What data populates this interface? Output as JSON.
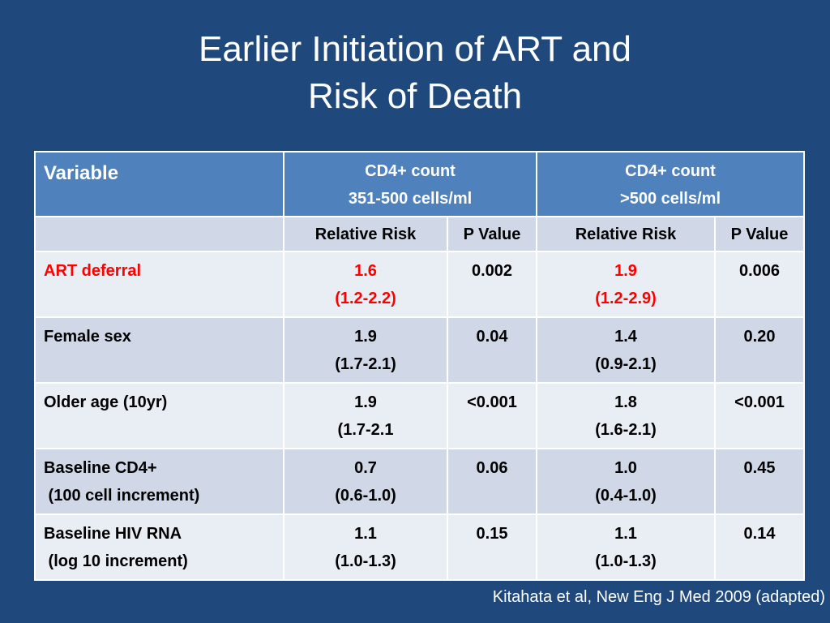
{
  "slide": {
    "title_line1": "Earlier Initiation of ART and",
    "title_line2": "Risk of Death",
    "citation": "Kitahata et al, New Eng J Med 2009 (adapted)"
  },
  "table": {
    "header": {
      "variable": "Variable",
      "group1_line1": "CD4+ count",
      "group1_line2": "351-500 cells/ml",
      "group2_line1": "CD4+ count",
      "group2_line2": ">500 cells/ml"
    },
    "subheader": {
      "rr1": "Relative Risk",
      "p1": "P Value",
      "rr2": "Relative Risk",
      "p2": "P Value"
    },
    "rows": [
      {
        "label_line1": "ART deferral",
        "label_line2": "",
        "rr1": "1.6",
        "ci1": "(1.2-2.2)",
        "p1": "0.002",
        "rr2": "1.9",
        "ci2": "(1.2-2.9)",
        "p2": "0.006",
        "highlight_color": "#ff0000"
      },
      {
        "label_line1": "Female sex",
        "label_line2": "",
        "rr1": "1.9",
        "ci1": "(1.7-2.1)",
        "p1": "0.04",
        "rr2": "1.4",
        "ci2": "(0.9-2.1)",
        "p2": "0.20"
      },
      {
        "label_line1": "Older age (10yr)",
        "label_line2": "",
        "rr1": "1.9",
        "ci1": "(1.7-2.1",
        "p1": "<0.001",
        "rr2": "1.8",
        "ci2": "(1.6-2.1)",
        "p2": "<0.001"
      },
      {
        "label_line1": "Baseline CD4+",
        "label_line2": " (100 cell increment)",
        "rr1": "0.7",
        "ci1": "(0.6-1.0)",
        "p1": "0.06",
        "rr2": "1.0",
        "ci2": "(0.4-1.0)",
        "p2": "0.45"
      },
      {
        "label_line1": "Baseline HIV RNA",
        "label_line2": " (log 10 increment)",
        "rr1": "1.1",
        "ci1": "(1.0-1.3)",
        "p1": "0.15",
        "rr2": "1.1",
        "ci2": "(1.0-1.3)",
        "p2": "0.14"
      }
    ]
  },
  "colors": {
    "background": "#1f497d",
    "header": "#4f81bd",
    "row_dark": "#d0d8e8",
    "row_light": "#e9edf4"
  }
}
